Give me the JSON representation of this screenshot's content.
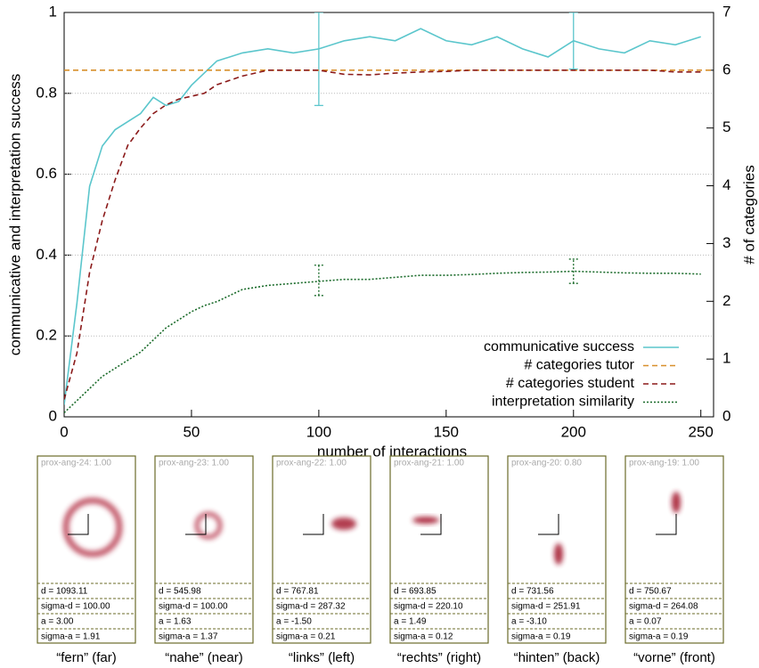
{
  "chart_data": {
    "type": "line",
    "xlabel": "number of interactions",
    "ylabel": "communicative and interpretation success",
    "y2label": "# of categories",
    "xlim": [
      0,
      255
    ],
    "xticks": [
      0,
      50,
      100,
      150,
      200,
      250
    ],
    "ylim": [
      0,
      1
    ],
    "yticks": [
      0,
      0.2,
      0.4,
      0.6,
      0.8,
      1
    ],
    "y2lim": [
      0,
      7
    ],
    "y2ticks": [
      0,
      1,
      2,
      3,
      4,
      5,
      6,
      7
    ],
    "grid": true,
    "legend": "lower right",
    "series": [
      {
        "name": "communicative success",
        "color": "#5bc6cc",
        "dash": "solid",
        "x": [
          0,
          5,
          10,
          15,
          20,
          25,
          30,
          35,
          40,
          45,
          50,
          55,
          60,
          70,
          80,
          90,
          100,
          110,
          120,
          130,
          140,
          150,
          160,
          170,
          180,
          190,
          200,
          210,
          220,
          230,
          240,
          250
        ],
        "values": [
          0.03,
          0.28,
          0.57,
          0.67,
          0.71,
          0.73,
          0.75,
          0.79,
          0.77,
          0.78,
          0.82,
          0.85,
          0.88,
          0.9,
          0.91,
          0.9,
          0.91,
          0.93,
          0.94,
          0.93,
          0.96,
          0.93,
          0.92,
          0.94,
          0.91,
          0.89,
          0.93,
          0.91,
          0.9,
          0.93,
          0.92,
          0.94
        ],
        "error_bars": [
          {
            "x": 100,
            "low": 0.77,
            "high": 1
          },
          {
            "x": 200,
            "low": 0.86,
            "high": 1
          }
        ]
      },
      {
        "name": "# categories tutor",
        "color": "#d8902c",
        "dash": "dashed",
        "axis": "y2",
        "x": [
          0,
          255
        ],
        "values": [
          6,
          6
        ]
      },
      {
        "name": "# categories student",
        "color": "#8b1a1a",
        "dash": "dashed",
        "axis": "y2",
        "x": [
          0,
          5,
          10,
          15,
          20,
          25,
          30,
          35,
          40,
          45,
          50,
          55,
          60,
          70,
          80,
          90,
          100,
          110,
          120,
          130,
          140,
          150,
          160,
          170,
          180,
          190,
          200,
          210,
          220,
          230,
          240,
          250
        ],
        "values": [
          0.3,
          1.1,
          2.5,
          3.4,
          4.1,
          4.7,
          5.0,
          5.25,
          5.4,
          5.5,
          5.55,
          5.6,
          5.75,
          5.9,
          6.0,
          6.0,
          6.0,
          5.93,
          5.92,
          5.95,
          5.97,
          5.98,
          6.0,
          6.0,
          6.0,
          6.0,
          6.0,
          6.0,
          6.0,
          6.0,
          5.97,
          5.97
        ]
      },
      {
        "name": "interpretation similarity",
        "color": "#1a6b2a",
        "dash": "dotted",
        "x": [
          0,
          5,
          10,
          15,
          20,
          25,
          30,
          35,
          40,
          45,
          50,
          55,
          60,
          70,
          80,
          90,
          100,
          110,
          120,
          130,
          140,
          150,
          160,
          170,
          180,
          190,
          200,
          210,
          220,
          230,
          240,
          250
        ],
        "values": [
          0.01,
          0.04,
          0.07,
          0.1,
          0.12,
          0.14,
          0.16,
          0.19,
          0.22,
          0.24,
          0.26,
          0.275,
          0.285,
          0.315,
          0.325,
          0.33,
          0.335,
          0.34,
          0.34,
          0.345,
          0.35,
          0.35,
          0.352,
          0.355,
          0.357,
          0.358,
          0.36,
          0.358,
          0.356,
          0.355,
          0.355,
          0.353
        ],
        "error_bars": [
          {
            "x": 100,
            "low": 0.3,
            "high": 0.375
          },
          {
            "x": 200,
            "low": 0.33,
            "high": 0.39
          }
        ]
      }
    ]
  },
  "panels": [
    {
      "title": "prox-ang-24: 1.00",
      "params": [
        "d = 1093.11",
        "sigma-d = 100.00",
        "a = 3.00",
        "sigma-a = 1.91"
      ],
      "caption": "“fern” (far)"
    },
    {
      "title": "prox-ang-23: 1.00",
      "params": [
        "d = 545.98",
        "sigma-d = 100.00",
        "a = 1.63",
        "sigma-a = 1.37"
      ],
      "caption": "“nahe” (near)"
    },
    {
      "title": "prox-ang-22: 1.00",
      "params": [
        "d = 767.81",
        "sigma-d = 287.32",
        "a = -1.50",
        "sigma-a = 0.21"
      ],
      "caption": "“links” (left)"
    },
    {
      "title": "prox-ang-21: 1.00",
      "params": [
        "d = 693.85",
        "sigma-d = 220.10",
        "a = 1.49",
        "sigma-a = 0.12"
      ],
      "caption": "“rechts” (right)"
    },
    {
      "title": "prox-ang-20: 0.80",
      "params": [
        "d = 731.56",
        "sigma-d = 251.91",
        "a = -3.10",
        "sigma-a = 0.19"
      ],
      "caption": "“hinten” (back)"
    },
    {
      "title": "prox-ang-19: 1.00",
      "params": [
        "d = 750.67",
        "sigma-d = 264.08",
        "a = 0.07",
        "sigma-a = 0.19"
      ],
      "caption": "“vorne” (front)"
    }
  ]
}
